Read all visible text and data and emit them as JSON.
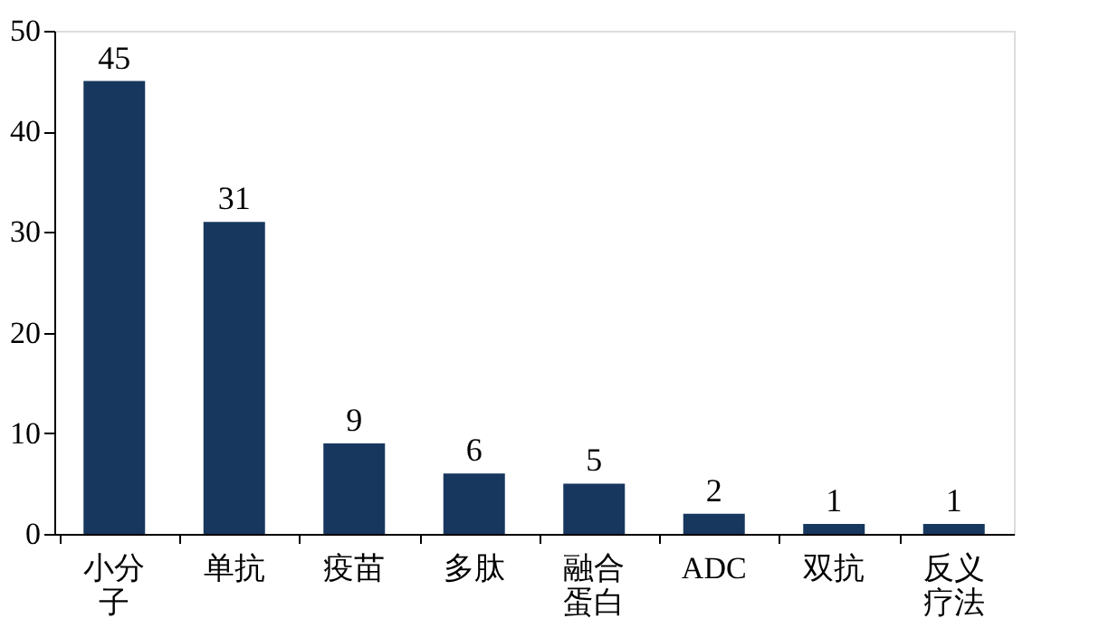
{
  "chart_data": {
    "type": "bar",
    "categories": [
      "小分子",
      "单抗",
      "疫苗",
      "多肽",
      "融合蛋白",
      "ADC",
      "双抗",
      "反义疗法"
    ],
    "values": [
      45,
      31,
      9,
      6,
      5,
      2,
      1,
      1
    ],
    "color": "#17375e",
    "ylim": [
      0,
      50
    ],
    "yticks": [
      0,
      10,
      20,
      30,
      40,
      50
    ],
    "grid": false,
    "data_labels": true
  }
}
